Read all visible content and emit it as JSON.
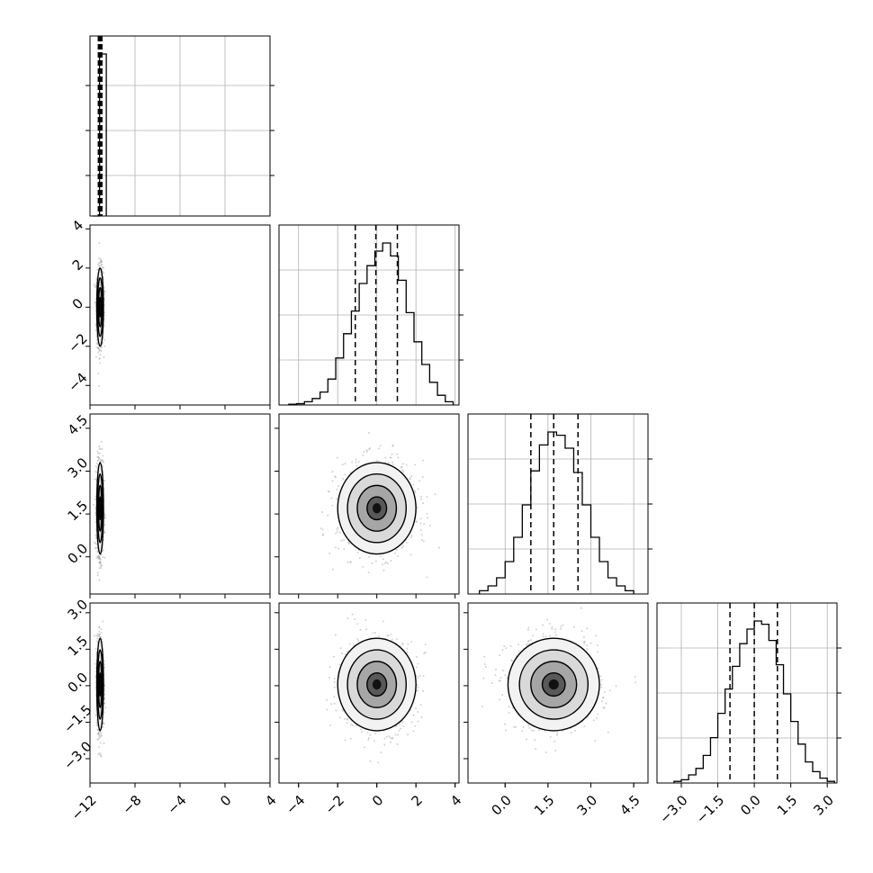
{
  "chart_data": {
    "type": "corner",
    "grid": true,
    "colors": {
      "data": "#000000",
      "grid": "#b0b0b0",
      "scatter": "#999999"
    },
    "parameters": [
      {
        "range": [
          -12,
          4
        ],
        "ticks": [
          "−12",
          "−8",
          "−4",
          "0",
          "4"
        ],
        "tick_values": [
          -12,
          -8,
          -4,
          0,
          4
        ],
        "samples": {
          "mean": -11.1,
          "sd": 0.15
        },
        "quantiles": [
          -11.1,
          -11.1,
          -11.1
        ]
      },
      {
        "range": [
          -5,
          4.2
        ],
        "ticks": [
          "−4",
          "−2",
          "0",
          "2",
          "4"
        ],
        "tick_values": [
          -4,
          -2,
          0,
          2,
          4
        ],
        "samples": {
          "mean": 0.0,
          "sd": 1.0
        },
        "quantiles": [
          -1.1,
          -0.05,
          1.05
        ]
      },
      {
        "range": [
          -1.3,
          5.0
        ],
        "ticks": [
          "0.0",
          "1.5",
          "3.0",
          "4.5"
        ],
        "tick_values": [
          0.0,
          1.5,
          3.0,
          4.5
        ],
        "samples": {
          "mean": 1.7,
          "sd": 0.8
        },
        "quantiles": [
          0.9,
          1.7,
          2.55
        ]
      },
      {
        "range": [
          -4.0,
          3.4
        ],
        "ticks": [
          "−3.0",
          "−1.5",
          "0.0",
          "1.5",
          "3.0"
        ],
        "tick_values": [
          -3.0,
          -1.5,
          0.0,
          1.5,
          3.0
        ],
        "samples": {
          "mean": 0.05,
          "sd": 0.95
        },
        "quantiles": [
          -1.0,
          0.0,
          0.95
        ]
      }
    ],
    "histograms": [
      {
        "param": 0,
        "bins": [
          -11.75,
          -11.15,
          -10.55
        ],
        "counts": [
          0,
          1.0
        ]
      },
      {
        "param": 1,
        "bins": [
          -4.5,
          -4.1,
          -3.7,
          -3.3,
          -2.9,
          -2.5,
          -2.1,
          -1.7,
          -1.3,
          -0.9,
          -0.5,
          -0.1,
          0.3,
          0.7,
          1.1,
          1.5,
          1.9,
          2.3,
          2.7,
          3.1,
          3.5,
          3.9
        ],
        "counts": [
          0.005,
          0.008,
          0.02,
          0.04,
          0.08,
          0.16,
          0.29,
          0.44,
          0.58,
          0.75,
          0.86,
          0.95,
          1.0,
          0.92,
          0.77,
          0.57,
          0.39,
          0.25,
          0.14,
          0.06,
          0.02
        ]
      },
      {
        "param": 2,
        "bins": [
          -0.9,
          -0.6,
          -0.3,
          0.0,
          0.3,
          0.6,
          0.9,
          1.2,
          1.5,
          1.8,
          2.1,
          2.4,
          2.7,
          3.0,
          3.3,
          3.6,
          3.9,
          4.2,
          4.5
        ],
        "counts": [
          0.02,
          0.05,
          0.1,
          0.2,
          0.35,
          0.55,
          0.76,
          0.92,
          1.0,
          0.98,
          0.9,
          0.75,
          0.55,
          0.35,
          0.2,
          0.1,
          0.05,
          0.02
        ]
      },
      {
        "param": 3,
        "bins": [
          -3.3,
          -3.0,
          -2.7,
          -2.4,
          -2.1,
          -1.8,
          -1.5,
          -1.2,
          -0.9,
          -0.6,
          -0.3,
          0.0,
          0.3,
          0.6,
          0.9,
          1.2,
          1.5,
          1.8,
          2.1,
          2.4,
          2.7,
          3.0,
          3.3
        ],
        "counts": [
          0.01,
          0.02,
          0.05,
          0.09,
          0.17,
          0.28,
          0.43,
          0.58,
          0.72,
          0.86,
          0.95,
          1.0,
          0.98,
          0.88,
          0.73,
          0.55,
          0.38,
          0.24,
          0.13,
          0.07,
          0.03,
          0.01
        ]
      }
    ],
    "pairs": [
      {
        "x": 0,
        "y": 1,
        "cov": 0.0
      },
      {
        "x": 0,
        "y": 2,
        "cov": 0.0
      },
      {
        "x": 0,
        "y": 3,
        "cov": 0.0
      },
      {
        "x": 1,
        "y": 2,
        "cov": 0.0
      },
      {
        "x": 1,
        "y": 3,
        "cov": 0.0
      },
      {
        "x": 2,
        "y": 3,
        "cov": 0.0
      }
    ],
    "contour_levels_sigma": [
      0.5,
      1.0,
      1.5,
      2.0
    ]
  }
}
